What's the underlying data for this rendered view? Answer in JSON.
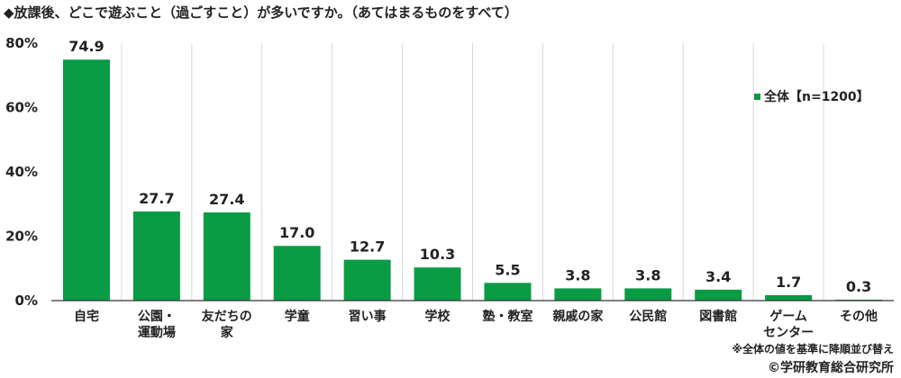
{
  "chart_data": {
    "type": "bar",
    "title": "◆放課後、どこで遊ぶこと（過ごすこと）が多いですか。（あてはまるものをすべて）",
    "categories": [
      "自宅",
      "公園・\n運動場",
      "友だちの\n家",
      "学童",
      "習い事",
      "学校",
      "塾・教室",
      "親戚の家",
      "公民館",
      "図書館",
      "ゲーム\nセンター",
      "その他"
    ],
    "series": [
      {
        "name": "全体【n=1200】",
        "values": [
          74.9,
          27.7,
          27.4,
          17.0,
          12.7,
          10.3,
          5.5,
          3.8,
          3.8,
          3.4,
          1.7,
          0.3
        ]
      }
    ],
    "yticks": [
      "0%",
      "20%",
      "40%",
      "60%",
      "80%"
    ],
    "ylim": [
      0,
      80
    ],
    "grid": "vertical",
    "legend_position": "top-right",
    "bar_color": "#0a9b45",
    "note": "※全体の値を基準に降順並び替え",
    "credit": "©学研教育総合研究所"
  }
}
